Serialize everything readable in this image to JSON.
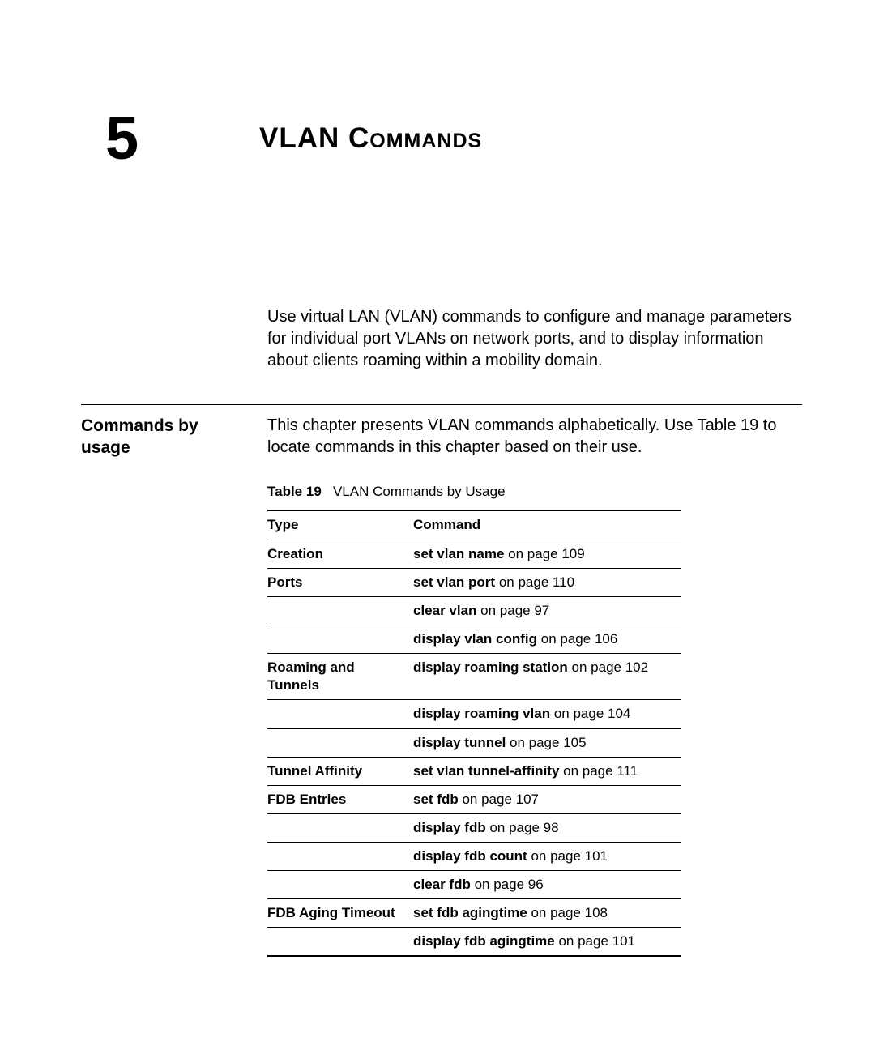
{
  "chapter": {
    "number": "5",
    "title": "VLAN Commands"
  },
  "intro": "Use virtual LAN (VLAN) commands to configure and manage parameters for individual port VLANs on network ports, and to display information about clients roaming within a mobility domain.",
  "section": {
    "heading": "Commands by usage",
    "text": "This chapter presents VLAN commands alphabetically. Use Table 19 to locate commands in this chapter based on their use."
  },
  "table": {
    "caption_label": "Table 19",
    "caption_text": "VLAN Commands by Usage",
    "columns": {
      "type": "Type",
      "command": "Command"
    },
    "rows": [
      {
        "type": "Creation",
        "cmd_bold": "set vlan name",
        "cmd_rest": " on page 109"
      },
      {
        "type": "Ports",
        "cmd_bold": "set vlan port",
        "cmd_rest": " on page 110"
      },
      {
        "type": "",
        "cmd_bold": "clear vlan",
        "cmd_rest": " on page 97"
      },
      {
        "type": "",
        "cmd_bold": "display vlan config",
        "cmd_rest": " on page 106"
      },
      {
        "type": "Roaming and Tunnels",
        "cmd_bold": "display roaming station",
        "cmd_rest": " on page 102"
      },
      {
        "type": "",
        "cmd_bold": "display roaming vlan",
        "cmd_rest": " on page 104"
      },
      {
        "type": "",
        "cmd_bold": "display tunnel",
        "cmd_rest": " on page 105"
      },
      {
        "type": "Tunnel Affinity",
        "cmd_bold": "set vlan tunnel-affinity",
        "cmd_rest": " on page 111"
      },
      {
        "type": "FDB Entries",
        "cmd_bold": "set fdb",
        "cmd_rest": " on page 107"
      },
      {
        "type": "",
        "cmd_bold": "display fdb",
        "cmd_rest": " on page 98"
      },
      {
        "type": "",
        "cmd_bold": "display fdb count",
        "cmd_rest": " on page 101"
      },
      {
        "type": "",
        "cmd_bold": "clear fdb",
        "cmd_rest": " on page 96"
      },
      {
        "type": "FDB Aging Timeout",
        "cmd_bold": "set fdb agingtime",
        "cmd_rest": " on page 108"
      },
      {
        "type": "",
        "cmd_bold": "display fdb agingtime",
        "cmd_rest": " on page 101"
      }
    ]
  }
}
